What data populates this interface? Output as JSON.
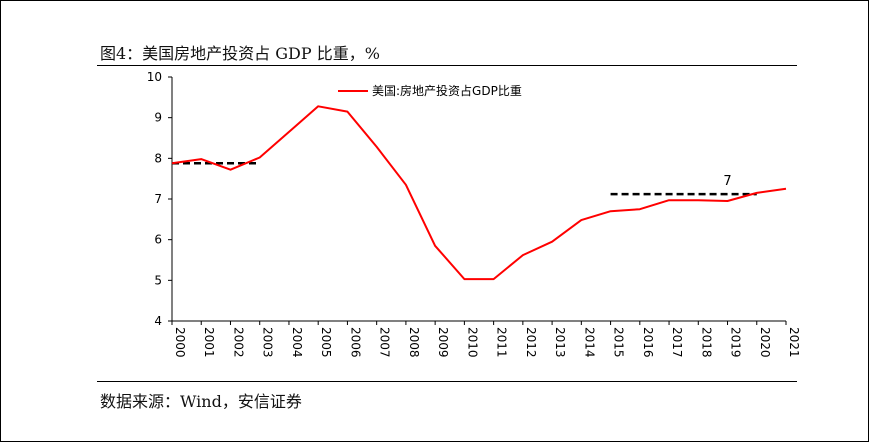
{
  "figure": {
    "title": "图4：美国房地产投资占 GDP 比重，%",
    "source": "数据来源：Wind，安信证券"
  },
  "chart_data": {
    "type": "line",
    "title": "图4：美国房地产投资占 GDP 比重，%",
    "xlabel": "",
    "ylabel": "",
    "x": [
      "2000",
      "2001",
      "2002",
      "2003",
      "2004",
      "2005",
      "2006",
      "2007",
      "2008",
      "2009",
      "2010",
      "2011",
      "2012",
      "2013",
      "2014",
      "2015",
      "2016",
      "2017",
      "2018",
      "2019",
      "2020",
      "2021"
    ],
    "ylim": [
      4,
      10
    ],
    "yticks": [
      4,
      5,
      6,
      7,
      8,
      9,
      10
    ],
    "grid": false,
    "legend_position": "top-left",
    "series": [
      {
        "name": "美国:房地产投资占GDP比重",
        "color": "#ff0000",
        "values": [
          7.88,
          7.98,
          7.72,
          8.02,
          8.65,
          9.28,
          9.15,
          8.28,
          7.35,
          5.85,
          5.03,
          5.03,
          5.62,
          5.95,
          6.48,
          6.7,
          6.75,
          6.97,
          6.97,
          6.95,
          7.15,
          7.25
        ]
      }
    ],
    "reference_lines": [
      {
        "from": "2000",
        "to": "2003",
        "y": 7.88,
        "style": "dashed",
        "color": "#000000"
      },
      {
        "from": "2015",
        "to": "2020",
        "y": 7.12,
        "style": "dashed",
        "color": "#000000"
      }
    ],
    "annotations": [
      {
        "text": "7",
        "x": "2019",
        "y": 7.35
      }
    ]
  }
}
